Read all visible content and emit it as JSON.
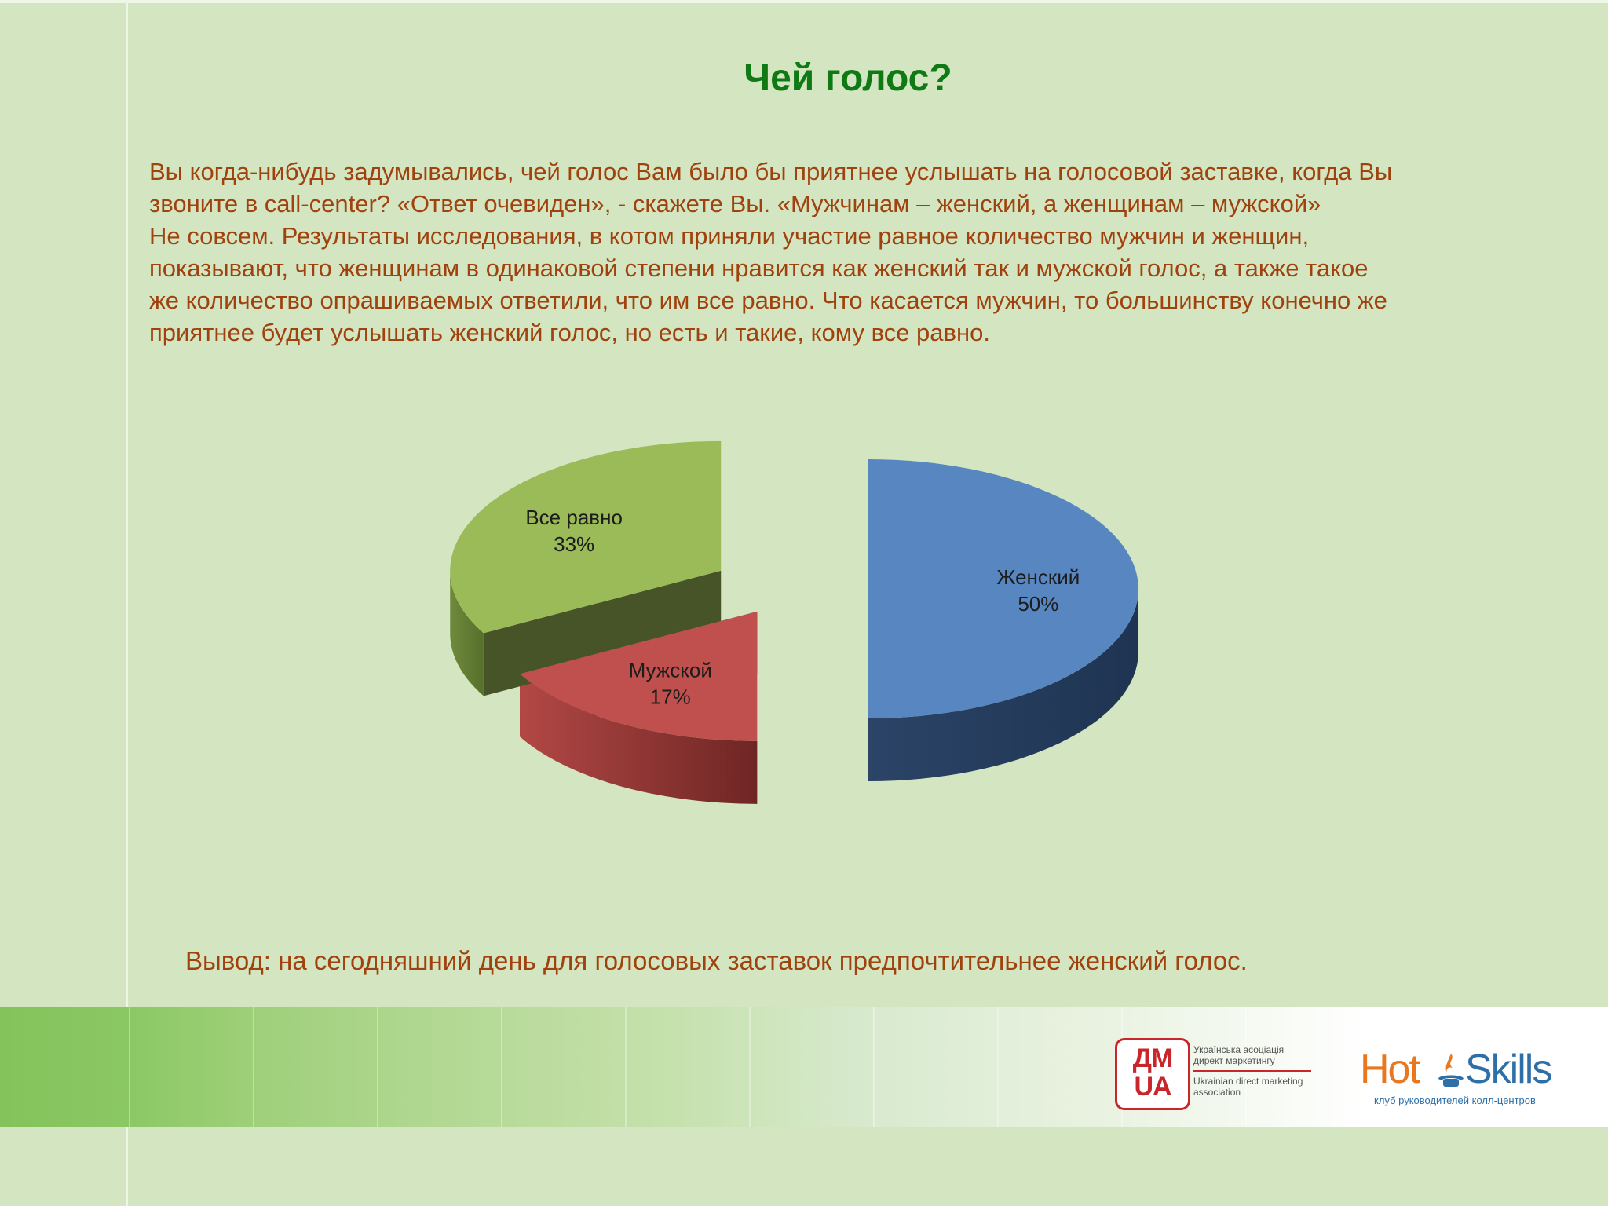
{
  "slide": {
    "title": "Чей голос?",
    "intro_lines": [
      "Вы когда-нибудь задумывались, чей голос Вам было бы приятнее услышать на голосовой заставке,  когда Вы",
      "звоните в call-center? «Ответ очевиден», - скажете  Вы.  «Мужчинам – женский, а женщинам – мужской»",
      "Не совсем. Результаты исследования, в котом приняли участие равное количество мужчин и женщин,",
      "показывают, что женщинам в одинаковой степени нравится как женский так и мужской голос, а также такое",
      "же количество опрашиваемых ответили, что им все равно. Что касается мужчин, то большинству конечно же",
      "приятнее будет услышать женский голос, но есть и такие, кому все равно."
    ],
    "conclusion": "Вывод: на сегодняшний день для голосовых заставок предпочтительнее женский голос."
  },
  "chart_data": {
    "type": "pie",
    "style": "3d-exploded",
    "title": "",
    "slices": [
      {
        "label": "Женский",
        "value": 50,
        "value_label": "50%",
        "color": "#5786c0"
      },
      {
        "label": "Мужской",
        "value": 17,
        "value_label": "17%",
        "color": "#c0504d"
      },
      {
        "label": "Все равно",
        "value": 33,
        "value_label": "33%",
        "color": "#9bbb59"
      }
    ],
    "legend": "none",
    "data_labels": "inside"
  },
  "footer": {
    "dmua_logo_lines": [
      "ДМ",
      "UA"
    ],
    "dmua_text_ua": [
      "Українська асоціація",
      "директ маркетингу"
    ],
    "dmua_text_en": [
      "Ukrainian direct marketing",
      "association"
    ],
    "hotskills_hot": "Hot",
    "hotskills_skills": "Skills",
    "hotskills_subtitle": "клуб руководителей колл-центров",
    "colors": {
      "dmua_red": "#c9262b",
      "hot_orange": "#e8771f",
      "skills_blue": "#2e6fa8"
    }
  },
  "theme": {
    "background": "#d3e6c1",
    "title_color": "#0f7a14",
    "text_color": "#a0420e"
  }
}
